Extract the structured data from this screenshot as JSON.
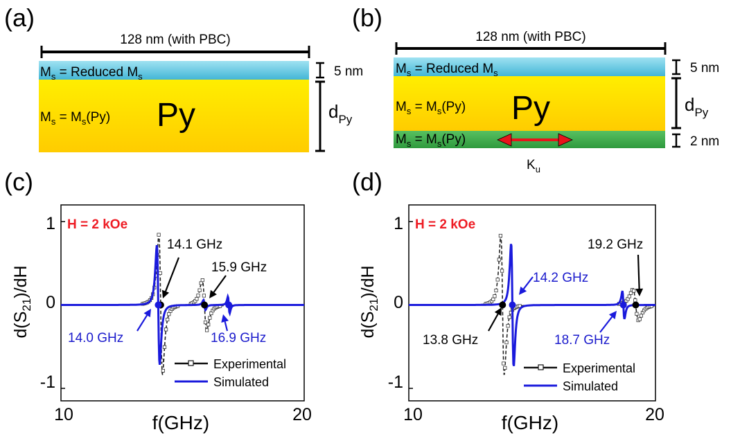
{
  "panel_a": {
    "label": "(a)",
    "width_text": "128 nm (with PBC)",
    "top_layer": {
      "m": "M",
      "sub1": "s",
      "mid": " = Reduced M",
      "sub2": "s"
    },
    "bulk_layer": {
      "m": "M",
      "sub1": "s",
      "mid": " = M",
      "sub2": "s",
      "tail": "(Py)"
    },
    "material": "Py",
    "top_thickness": "5 nm",
    "d_main": "d",
    "d_sub": "Py"
  },
  "panel_b": {
    "label": "(b)",
    "width_text": "128 nm (with PBC)",
    "top_layer": {
      "m": "M",
      "sub1": "s",
      "mid": " = Reduced M",
      "sub2": "s"
    },
    "bulk_layer": {
      "m": "M",
      "sub1": "s",
      "mid": " = M",
      "sub2": "s",
      "tail": "(Py)"
    },
    "bottom_layer": {
      "m": "M",
      "sub1": "s",
      "mid": " = M",
      "sub2": "s",
      "tail": "(Py)"
    },
    "material": "Py",
    "top_thickness": "5 nm",
    "bottom_thickness": "2 nm",
    "d_main": "d",
    "d_sub": "Py",
    "anisotropy_main": "K",
    "anisotropy_sub": "u"
  },
  "colors": {
    "reduced_layer": "#5bc6de",
    "py_top": "#ffee00",
    "py_bottom": "#ffcc00",
    "anisotropy_layer": "#3fae49",
    "arrow": "#e8141b",
    "field_label": "#ee1c24",
    "experimental": "#111111",
    "simulated": "#1a1adc",
    "blue_annotation": "#1a1acc"
  },
  "chart_data": [
    {
      "label": "(c)",
      "type": "line",
      "field_label": "H = 2 kOe",
      "xlabel": "f(GHz)",
      "ylabel": {
        "pre": "d(S",
        "sub": "21",
        "post": ")/dH"
      },
      "xlim": [
        10,
        20
      ],
      "ylim": [
        -1.15,
        1.2
      ],
      "xticks": [
        "10",
        "20"
      ],
      "yticks": [
        {
          "v": 1,
          "t": "1"
        },
        {
          "v": 0,
          "t": "0"
        },
        {
          "v": -1,
          "t": "-1"
        }
      ],
      "legend": [
        "Experimental",
        "Simulated"
      ],
      "experimental_peaks": [
        {
          "f": 14.1,
          "amp": 1.0,
          "w": 0.13
        },
        {
          "f": 15.9,
          "amp": 0.36,
          "w": 0.16
        }
      ],
      "simulated_peaks": [
        {
          "f": 14.0,
          "amp": 0.85,
          "w": 0.1
        },
        {
          "f": 15.9,
          "amp": 0.07,
          "w": 0.07
        },
        {
          "f": 16.9,
          "amp": 0.12,
          "w": 0.06
        }
      ],
      "annotations": [
        {
          "text": "14.1 GHz",
          "f": 14.1,
          "color": "black"
        },
        {
          "text": "15.9 GHz",
          "f": 15.9,
          "color": "black"
        },
        {
          "text": "14.0 GHz",
          "f": 14.0,
          "color": "blue"
        },
        {
          "text": "16.9 GHz",
          "f": 16.9,
          "color": "blue"
        }
      ]
    },
    {
      "label": "(d)",
      "type": "line",
      "field_label": "H = 2 kOe",
      "xlabel": "f(GHz)",
      "ylabel": {
        "pre": "d(S",
        "sub": "21",
        "post": ")/dH"
      },
      "xlim": [
        10,
        20
      ],
      "ylim": [
        -1.15,
        1.2
      ],
      "xticks": [
        "10",
        "20"
      ],
      "yticks": [
        {
          "v": 1,
          "t": "1"
        },
        {
          "v": 0,
          "t": "0"
        },
        {
          "v": -1,
          "t": "-1"
        }
      ],
      "legend": [
        "Experimental",
        "Simulated"
      ],
      "experimental_peaks": [
        {
          "f": 13.8,
          "amp": 1.0,
          "w": 0.12
        },
        {
          "f": 19.2,
          "amp": 0.22,
          "w": 0.2
        }
      ],
      "simulated_peaks": [
        {
          "f": 14.2,
          "amp": 0.88,
          "w": 0.09
        },
        {
          "f": 18.7,
          "amp": 0.2,
          "w": 0.07
        }
      ],
      "annotations": [
        {
          "text": "13.8 GHz",
          "f": 13.8,
          "color": "black"
        },
        {
          "text": "19.2 GHz",
          "f": 19.2,
          "color": "black"
        },
        {
          "text": "14.2 GHz",
          "f": 14.2,
          "color": "blue"
        },
        {
          "text": "18.7 GHz",
          "f": 18.7,
          "color": "blue"
        }
      ]
    }
  ]
}
